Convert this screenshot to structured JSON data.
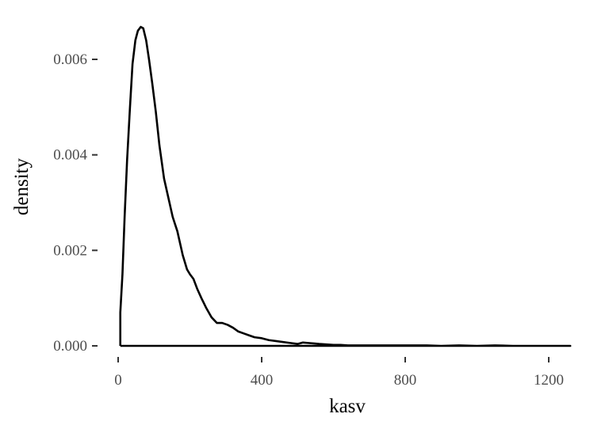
{
  "chart_data": {
    "type": "area",
    "title": "",
    "xlabel": "kasv",
    "ylabel": "density",
    "xlim": [
      -5,
      1260
    ],
    "ylim": [
      0,
      0.0068
    ],
    "xticks": [
      0,
      400,
      800,
      1200
    ],
    "xtick_labels": [
      "0",
      "400",
      "800",
      "1200"
    ],
    "yticks": [
      0,
      0.002,
      0.004,
      0.006
    ],
    "ytick_labels": [
      "0.000",
      "0.002",
      "0.004",
      "0.006"
    ],
    "grid": false,
    "legend": "none",
    "line_color": "#000000",
    "fill": "none",
    "series": [
      {
        "x": [
          6,
          6,
          12,
          18,
          25,
          33,
          40,
          48,
          55,
          63,
          70,
          78,
          86,
          95,
          105,
          115,
          128,
          140,
          152,
          165,
          180,
          192,
          200,
          210,
          220,
          232,
          245,
          260,
          275,
          290,
          305,
          320,
          335,
          350,
          365,
          380,
          400,
          420,
          440,
          460,
          480,
          500,
          515,
          530,
          545,
          560,
          580,
          600,
          620,
          640,
          660,
          680,
          700,
          720,
          740,
          760,
          780,
          800,
          830,
          860,
          900,
          950,
          1000,
          1050,
          1100,
          1150,
          1200,
          1260
        ],
        "y": [
          0,
          0.0007,
          0.0015,
          0.0027,
          0.0039,
          0.005,
          0.0059,
          0.0064,
          0.0066,
          0.00668,
          0.00665,
          0.0064,
          0.006,
          0.0055,
          0.0049,
          0.0042,
          0.0035,
          0.0031,
          0.0027,
          0.0024,
          0.0019,
          0.0016,
          0.0015,
          0.0014,
          0.0012,
          0.001,
          0.0008,
          0.0006,
          0.00048,
          0.00048,
          0.00044,
          0.00038,
          0.0003,
          0.00026,
          0.00022,
          0.00018,
          0.00016,
          0.00012,
          0.0001,
          8e-05,
          6e-05,
          4e-05,
          7e-05,
          6e-05,
          5e-05,
          4e-05,
          3e-05,
          2e-05,
          2e-05,
          1e-05,
          1e-05,
          1e-05,
          1e-05,
          1e-05,
          1e-05,
          1e-05,
          1e-05,
          1e-05,
          1e-05,
          1e-05,
          0,
          1e-05,
          0,
          1e-05,
          0,
          0,
          0,
          0
        ]
      }
    ]
  }
}
